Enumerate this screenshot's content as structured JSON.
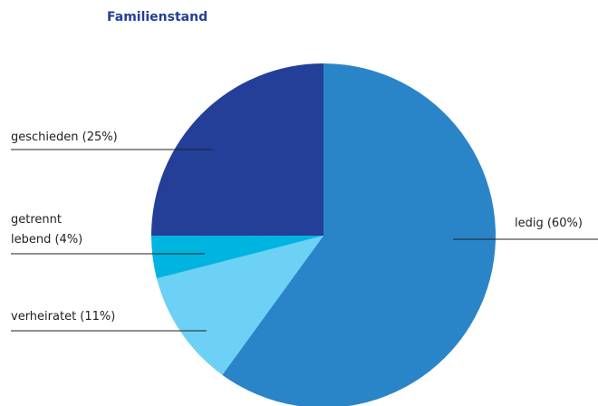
{
  "chart_data": {
    "type": "pie",
    "title": "Familienstand",
    "values": [
      60,
      11,
      4,
      25
    ],
    "value_labels": [
      [
        "ledig (60%)"
      ],
      [
        "verheiratet (11%)"
      ],
      [
        "getrennt",
        "lebend (4%)"
      ],
      [
        "geschieden (25%)"
      ]
    ],
    "colors": [
      "#2a84c8",
      "#6dd0f5",
      "#00b4e0",
      "#233f98"
    ]
  }
}
